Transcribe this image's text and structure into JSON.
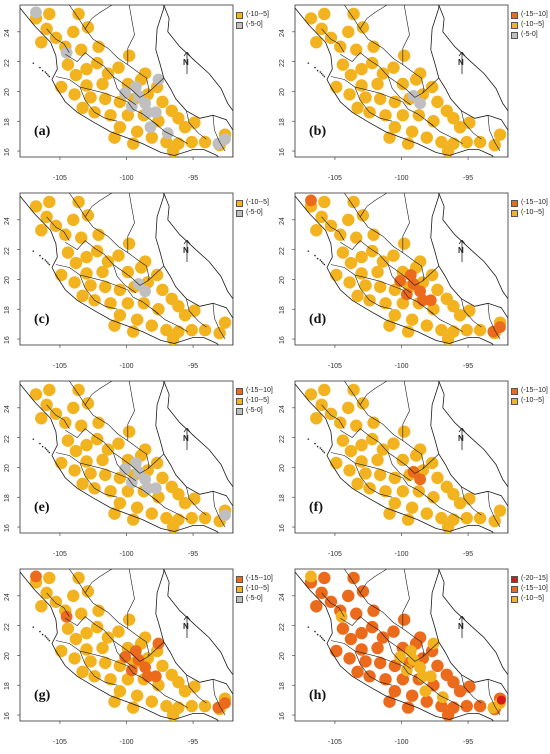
{
  "colors": {
    "class_20_15": "#d7191c",
    "class_15_10": "#ec6a1b",
    "class_10_5": "#f2b31f",
    "class_5_0": "#bfbfbf",
    "coast": "#1a1a1a",
    "border": "#1a1a1a"
  },
  "axes": {
    "x_ticks": [
      "-105",
      "-100",
      "-95"
    ],
    "y_ticks": [
      "16",
      "18",
      "20",
      "22",
      "24"
    ]
  },
  "north_arrow_label": "N",
  "panels": [
    {
      "label": "(a)",
      "legend": [
        {
          "text": "(-10--5]",
          "color_key": "class_10_5"
        },
        {
          "text": "(-5-0]",
          "color_key": "class_5_0"
        }
      ],
      "fill_key": "class_10_5",
      "accent_key": "class_5_0",
      "accent_level": 0.35
    },
    {
      "label": "(b)",
      "legend": [
        {
          "text": "(-15--10]",
          "color_key": "class_15_10"
        },
        {
          "text": "(-10--5]",
          "color_key": "class_10_5"
        },
        {
          "text": "(-5-0]",
          "color_key": "class_5_0"
        }
      ],
      "fill_key": "class_10_5",
      "accent_key": "class_5_0",
      "accent_level": 0.05
    },
    {
      "label": "(c)",
      "legend": [
        {
          "text": "(-10--5]",
          "color_key": "class_10_5"
        },
        {
          "text": "(-5-0]",
          "color_key": "class_5_0"
        }
      ],
      "fill_key": "class_10_5",
      "accent_key": "class_5_0",
      "accent_level": 0.05
    },
    {
      "label": "(d)",
      "legend": [
        {
          "text": "(-15--10]",
          "color_key": "class_15_10"
        },
        {
          "text": "(-10--5]",
          "color_key": "class_10_5"
        }
      ],
      "fill_key": "class_10_5",
      "accent_key": "class_15_10",
      "accent_level": 0.25
    },
    {
      "label": "(e)",
      "legend": [
        {
          "text": "(-15--10]",
          "color_key": "class_15_10"
        },
        {
          "text": "(-10--5]",
          "color_key": "class_10_5"
        },
        {
          "text": "(-5-0]",
          "color_key": "class_5_0"
        }
      ],
      "fill_key": "class_10_5",
      "accent_key": "class_5_0",
      "accent_level": 0.2
    },
    {
      "label": "(f)",
      "legend": [
        {
          "text": "(-15--10]",
          "color_key": "class_15_10"
        },
        {
          "text": "(-10--5]",
          "color_key": "class_10_5"
        }
      ],
      "fill_key": "class_10_5",
      "accent_key": "class_15_10",
      "accent_level": 0.05
    },
    {
      "label": "(g)",
      "legend": [
        {
          "text": "(-15--10]",
          "color_key": "class_15_10"
        },
        {
          "text": "(-10--5]",
          "color_key": "class_10_5"
        },
        {
          "text": "(-5-0]",
          "color_key": "class_5_0"
        }
      ],
      "fill_key": "class_10_5",
      "accent_key": "class_15_10",
      "accent_level": 0.3
    },
    {
      "label": "(h)",
      "legend": [
        {
          "text": "(-20--15]",
          "color_key": "class_20_15"
        },
        {
          "text": "(-15--10]",
          "color_key": "class_15_10"
        },
        {
          "text": "(-10--5]",
          "color_key": "class_10_5"
        }
      ],
      "fill_key": "class_15_10",
      "accent_key": "class_10_5",
      "accent_level": 0.35
    }
  ]
}
